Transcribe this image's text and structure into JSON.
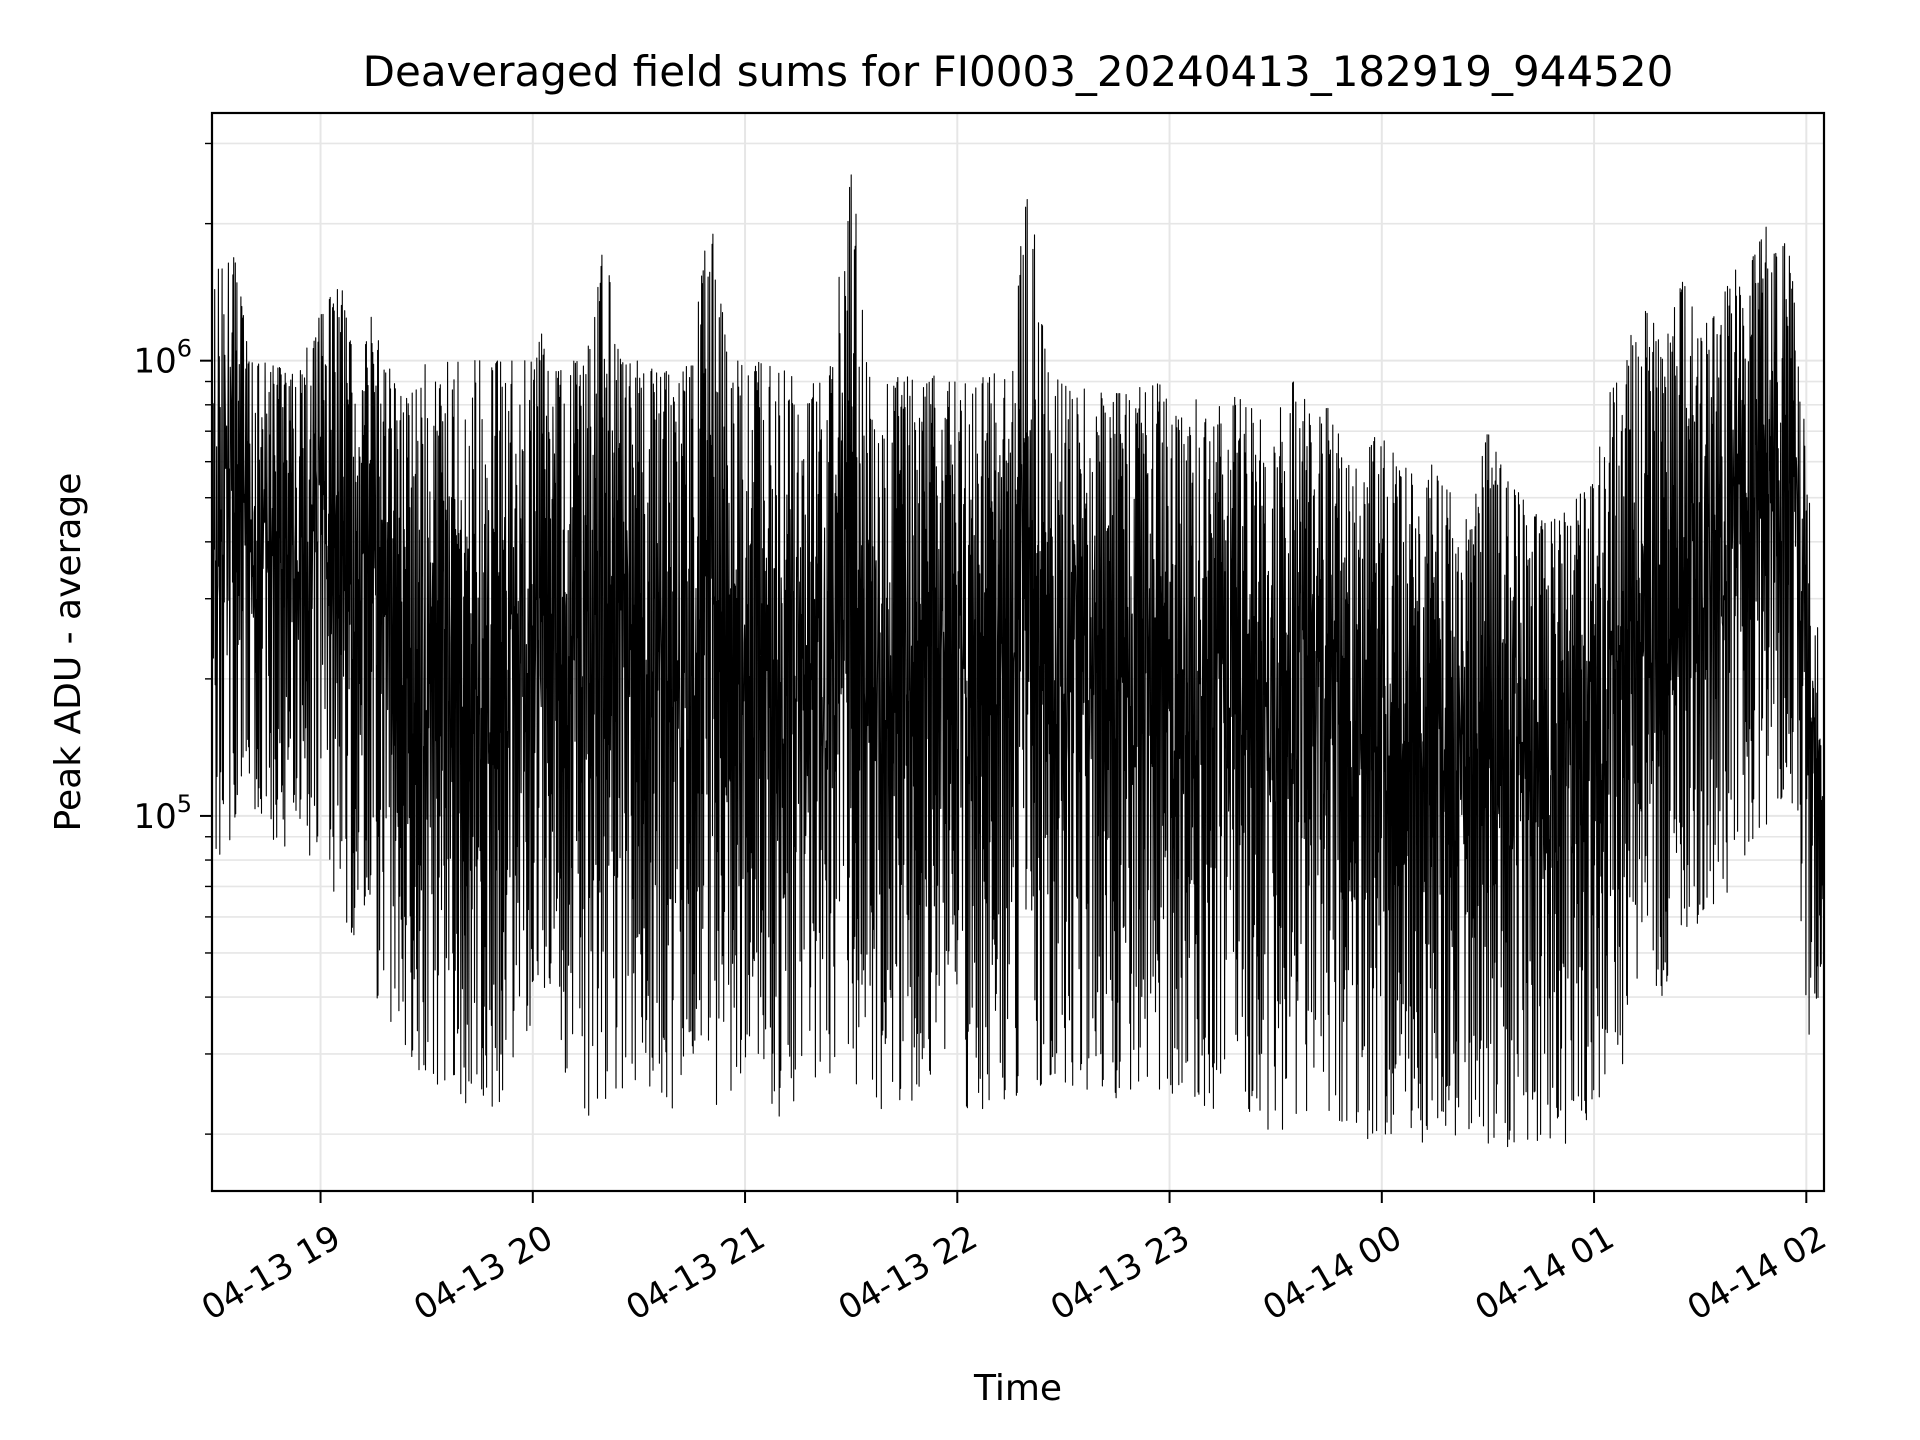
{
  "chart_data": {
    "type": "line",
    "title": "Deaveraged field sums for FI0003_20240413_182919_944520",
    "xlabel": "Time",
    "ylabel": "Peak ADU - average",
    "y_scale": "log",
    "ylim": [
      15000,
      3500000
    ],
    "xlim": [
      "2024-04-13T18:29:19",
      "2024-04-14T02:05:00"
    ],
    "x_ticks": [
      {
        "value": "2024-04-13T19:00:00",
        "label": "04-13 19"
      },
      {
        "value": "2024-04-13T20:00:00",
        "label": "04-13 20"
      },
      {
        "value": "2024-04-13T21:00:00",
        "label": "04-13 21"
      },
      {
        "value": "2024-04-13T22:00:00",
        "label": "04-13 22"
      },
      {
        "value": "2024-04-13T23:00:00",
        "label": "04-13 23"
      },
      {
        "value": "2024-04-14T00:00:00",
        "label": "04-14 00"
      },
      {
        "value": "2024-04-14T01:00:00",
        "label": "04-14 01"
      },
      {
        "value": "2024-04-14T02:00:00",
        "label": "04-14 02"
      }
    ],
    "y_ticks": [
      {
        "value": 100000,
        "base": "10",
        "exp": "5"
      },
      {
        "value": 1000000,
        "base": "10",
        "exp": "6"
      }
    ],
    "grid": true,
    "line_color": "#000000",
    "series": [
      {
        "x": [
          "2024-04-13T18:29:19",
          "2024-04-13T18:35:00",
          "2024-04-13T18:40:00",
          "2024-04-13T18:45:00",
          "2024-04-13T18:50:00",
          "2024-04-13T18:55:00",
          "2024-04-13T19:00:00",
          "2024-04-13T19:05:00",
          "2024-04-13T19:10:00",
          "2024-04-13T19:15:00",
          "2024-04-13T19:20:00",
          "2024-04-13T19:25:00",
          "2024-04-13T19:30:00",
          "2024-04-13T19:35:00",
          "2024-04-13T19:40:00",
          "2024-04-13T19:45:00",
          "2024-04-13T19:50:00",
          "2024-04-13T19:55:00",
          "2024-04-13T20:00:00",
          "2024-04-13T20:05:00",
          "2024-04-13T20:10:00",
          "2024-04-13T20:15:00",
          "2024-04-13T20:20:00",
          "2024-04-13T20:25:00",
          "2024-04-13T20:30:00",
          "2024-04-13T20:35:00",
          "2024-04-13T20:40:00",
          "2024-04-13T20:45:00",
          "2024-04-13T20:50:00",
          "2024-04-13T20:55:00",
          "2024-04-13T21:00:00",
          "2024-04-13T21:05:00",
          "2024-04-13T21:10:00",
          "2024-04-13T21:15:00",
          "2024-04-13T21:20:00",
          "2024-04-13T21:25:00",
          "2024-04-13T21:30:00",
          "2024-04-13T21:35:00",
          "2024-04-13T21:40:00",
          "2024-04-13T21:45:00",
          "2024-04-13T21:50:00",
          "2024-04-13T21:55:00",
          "2024-04-13T22:00:00",
          "2024-04-13T22:05:00",
          "2024-04-13T22:10:00",
          "2024-04-13T22:15:00",
          "2024-04-13T22:20:00",
          "2024-04-13T22:25:00",
          "2024-04-13T22:30:00",
          "2024-04-13T22:35:00",
          "2024-04-13T22:40:00",
          "2024-04-13T22:45:00",
          "2024-04-13T22:50:00",
          "2024-04-13T22:55:00",
          "2024-04-13T23:00:00",
          "2024-04-13T23:05:00",
          "2024-04-13T23:10:00",
          "2024-04-13T23:15:00",
          "2024-04-13T23:20:00",
          "2024-04-13T23:25:00",
          "2024-04-13T23:30:00",
          "2024-04-13T23:35:00",
          "2024-04-13T23:40:00",
          "2024-04-13T23:45:00",
          "2024-04-13T23:50:00",
          "2024-04-13T23:55:00",
          "2024-04-14T00:00:00",
          "2024-04-14T00:05:00",
          "2024-04-14T00:10:00",
          "2024-04-14T00:15:00",
          "2024-04-14T00:20:00",
          "2024-04-14T00:25:00",
          "2024-04-14T00:30:00",
          "2024-04-14T00:35:00",
          "2024-04-14T00:40:00",
          "2024-04-14T00:45:00",
          "2024-04-14T00:50:00",
          "2024-04-14T00:55:00",
          "2024-04-14T01:00:00",
          "2024-04-14T01:05:00",
          "2024-04-14T01:10:00",
          "2024-04-14T01:15:00",
          "2024-04-14T01:20:00",
          "2024-04-14T01:25:00",
          "2024-04-14T01:30:00",
          "2024-04-14T01:35:00",
          "2024-04-14T01:40:00",
          "2024-04-14T01:45:00",
          "2024-04-14T01:50:00",
          "2024-04-14T01:55:00",
          "2024-04-14T02:00:00",
          "2024-04-14T02:05:00"
        ],
        "low": [
          70000,
          90000,
          100000,
          90000,
          85000,
          80000,
          85000,
          60000,
          45000,
          40000,
          35000,
          28000,
          25000,
          25000,
          23000,
          24000,
          22000,
          30000,
          35000,
          38000,
          25000,
          22000,
          22000,
          25000,
          26000,
          25000,
          22000,
          22000,
          23000,
          23000,
          25000,
          22000,
          20000,
          24000,
          23000,
          24000,
          26000,
          24000,
          22000,
          24000,
          23000,
          25000,
          24000,
          22000,
          23000,
          24000,
          25000,
          25000,
          26000,
          25000,
          25000,
          24000,
          22000,
          25000,
          23000,
          24000,
          23000,
          22000,
          22000,
          21000,
          20000,
          21000,
          21000,
          22000,
          20000,
          19000,
          20000,
          20000,
          19000,
          19000,
          20000,
          19000,
          19000,
          18000,
          19000,
          18000,
          18000,
          20000,
          22000,
          26000,
          30000,
          35000,
          40000,
          45000,
          60000,
          65000,
          70000,
          85000,
          90000,
          120000,
          30000,
          45000
        ],
        "high": [
          1500000,
          1800000,
          1000000,
          1000000,
          950000,
          1000000,
          1300000,
          1600000,
          900000,
          1300000,
          1000000,
          900000,
          1000000,
          1000000,
          1000000,
          1000000,
          1000000,
          1000000,
          1000000,
          1300000,
          1000000,
          1000000,
          1800000,
          1000000,
          1000000,
          950000,
          950000,
          1000000,
          2100000,
          1000000,
          1000000,
          1000000,
          950000,
          950000,
          900000,
          1000000,
          2700000,
          950000,
          900000,
          950000,
          900000,
          950000,
          900000,
          900000,
          950000,
          900000,
          2400000,
          1000000,
          900000,
          900000,
          850000,
          850000,
          850000,
          1000000,
          800000,
          800000,
          850000,
          800000,
          900000,
          750000,
          800000,
          900000,
          800000,
          800000,
          700000,
          650000,
          700000,
          600000,
          550000,
          600000,
          500000,
          450000,
          700000,
          550000,
          500000,
          450000,
          450000,
          500000,
          550000,
          900000,
          1200000,
          1300000,
          1100000,
          1500000,
          1200000,
          1300000,
          1600000,
          1900000,
          2000000,
          1800000,
          600000,
          65000
        ]
      }
    ]
  }
}
